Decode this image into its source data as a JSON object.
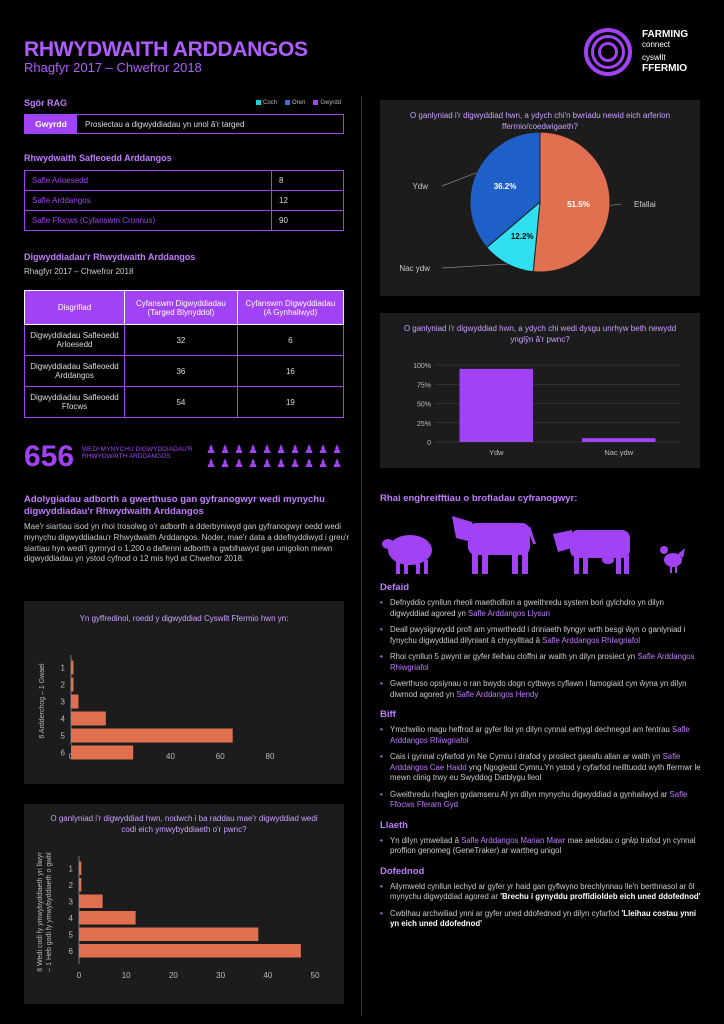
{
  "header": {
    "title": "RHWYDWAITH ARDDANGOS",
    "subtitle": "Rhagfyr 2017 – Chwefror 2018",
    "logo_line1": "FARMING",
    "logo_line2": "connect",
    "logo_line3": "cyswllt",
    "logo_line4": "FFERMIO"
  },
  "rag": {
    "heading": "Sgôr RAG",
    "legend": [
      {
        "label": "Coch",
        "color": "#1fd3d3"
      },
      {
        "label": "Oren",
        "color": "#3a72d8"
      },
      {
        "label": "Gwyrdd",
        "color": "#a142f4"
      }
    ],
    "status": "Gwyrdd",
    "description": "Prosiectau a digwyddiadau yn unol â'r targed"
  },
  "sites": {
    "heading": "Rhwydwaith Safleoedd Arddangos",
    "rows": [
      {
        "label": "Safle Arloesedd",
        "value": "8"
      },
      {
        "label": "Safle Arddangos",
        "value": "12"
      },
      {
        "label": "Safle Ffocws (Cyfanswm Cronnus)",
        "value": "90"
      }
    ]
  },
  "events": {
    "heading": "Digwyddiadau'r Rhwydwaith Arddangos",
    "subheading": "Rhagfyr 2017 – Chwefror 2018",
    "columns": [
      "Disgrifiad",
      "Cyfanswm Digwyddiadau (Targed Blynyddol)",
      "Cyfanswm Digwyddiadau (A Gynhaliwyd)"
    ],
    "rows": [
      [
        "Digwyddiadau Safleoedd Arloesedd",
        "32",
        "6"
      ],
      [
        "Digwyddiadau Safleoedd Arddangos",
        "36",
        "16"
      ],
      [
        "Digwyddiadau Safleoedd Ffocws",
        "54",
        "19"
      ]
    ]
  },
  "attendance": {
    "number": "656",
    "label": "WEDI MYNYCHU DIGWYDDIADAU'R RHWYDWAITH ARDDANGOS",
    "icon": "person-icon"
  },
  "feedback": {
    "heading": "Adolygiadau adborth a gwerthuso gan gyfranogwyr wedi mynychu digwyddiadau'r Rhwydwaith Arddangos",
    "body": "Mae'r siartiau isod yn rhoi trosolwg o'r adborth a dderbyniwyd gan gyfranogwyr oedd wedi mynychu digwyddiadau'r Rhwydwaith Arddangos. Noder, mae'r data a ddefnyddiwyd i greu'r siartiau hyn wedi'i gymryd o 1,200 o daflenni adborth a gwblhawyd gan unigolion mewn digwyddiadau yn ystod cyfnod o 12 mis hyd at Chwefror 2018."
  },
  "chart_data": [
    {
      "type": "bar",
      "orientation": "horizontal",
      "title": "Yn gyffredinol, roedd y digwyddiad Cyswllt Ffermio hwn yn:",
      "ylabel": "6 Ardderchog – 1 Gwael",
      "categories": [
        "1",
        "2",
        "3",
        "4",
        "5",
        "6"
      ],
      "values": [
        1,
        1,
        3,
        14,
        65,
        25
      ],
      "xlim": [
        0,
        80
      ],
      "xticks": [
        0,
        20,
        40,
        60,
        80
      ],
      "color": "#e07050"
    },
    {
      "type": "bar",
      "orientation": "horizontal",
      "title": "O ganlyniad i'r digwyddiad hwn, nodwch i ba raddau mae'r digwyddiad wedi codi eich ymwybyddiaeth o'r pwnc?",
      "ylabel": "6 Wedi codi fy ymwybyddiaeth yn llwyr – 1 Heb godi fy ymwybyddiaeth o gwbl",
      "categories": [
        "1",
        "2",
        "3",
        "4",
        "5",
        "6"
      ],
      "values": [
        0.5,
        0.5,
        5,
        12,
        38,
        47
      ],
      "xlim": [
        0,
        50
      ],
      "xticks": [
        0,
        10,
        20,
        30,
        40,
        50
      ],
      "color": "#e07050"
    },
    {
      "type": "pie",
      "title": "O ganlyniad i'r digwyddiad hwn, a ydych chi'n bwriadu newid eich arferion ffermio/coedwigaeth?",
      "slices": [
        {
          "label": "Efallai",
          "value": 51.5,
          "text": "51.5%",
          "color": "#e07050"
        },
        {
          "label": "Nac ydw",
          "value": 12.2,
          "text": "12.2%",
          "color": "#30e0f0"
        },
        {
          "label": "Ydw",
          "value": 36.2,
          "text": "36.2%",
          "color": "#1f5fc8"
        }
      ]
    },
    {
      "type": "bar",
      "title": "O ganlyniad i'r digwyddiad hwn, a ydych chi wedi dysgu unrhyw beth newydd ynglŷn â'r pwnc?",
      "categories": [
        "Ydw",
        "Nac ydw"
      ],
      "values": [
        95,
        5
      ],
      "ylim": [
        0,
        100
      ],
      "yticks": [
        "0",
        "25%",
        "50%",
        "75%",
        "100%"
      ],
      "color": "#a142f4"
    }
  ],
  "experiences": {
    "heading": "Rhai enghreifftiau o brofiadau cyfranogwyr:",
    "animals": [
      "sheep-icon",
      "cow-icon",
      "dairy-cow-icon",
      "chicken-icon"
    ],
    "groups": [
      {
        "title": "Defaid",
        "items": [
          {
            "text": "Defnyddio cynllun rheoli maethollion a gweithredu system bori gylchdro yn dilyn digwyddiad agored yn ",
            "link": "Safle Arddangos Llysun",
            "end": ""
          },
          {
            "text": "Deall pwysigrwydd profi am ymwrthedd i driniaeth llyngyr wrth besgi ŵyn o ganlyniad i fynychu digwyddiad dilyniant â chysylltiad â ",
            "link": "Safle Arddangos Rhiwgriafol",
            "end": ""
          },
          {
            "text": "Rhoi cynllun 5 pwynt ar gyfer lleihau cloffni ar waith yn dilyn prosiect yn ",
            "link": "Safle Arddangos Rhiwgriafol",
            "end": ""
          },
          {
            "text": "Gwerthuso opsiynau o ran bwydo dogn cytbwys cyflawn i famogiaid cyn ŵyna yn dilyn diwrnod agored yn ",
            "link": "Safle Arddangos Hendy",
            "end": ""
          }
        ]
      },
      {
        "title": "Biff",
        "items": [
          {
            "text": "Ymchwilio magu heffrod ar gyfer lloi yn dilyn cynnal erthygl dechnegol am fentrau ",
            "link": "Safle Arddangos Rhiwgriafol",
            "end": ""
          },
          {
            "text": "Cais i gynnal cyfarfod yn Ne Cymru i drafod y prosiect gaeafu allan ar waith yn ",
            "link": "Safle Arddangos Cae Haidd",
            "end": " yng Ngogledd Cymru.Yn ystod y cyfarfod neilltuodd wyth ffermwr le mewn clinig trwy eu Swyddog Datblygu lleol"
          },
          {
            "text": "Gweithredu rhaglen gydamseru AI yn dilyn mynychu digwyddiad a gynhaliwyd ar ",
            "link": "Safle Ffocws Fferam Gyd",
            "end": ""
          }
        ]
      },
      {
        "title": "Llaeth",
        "items": [
          {
            "text": "Yn dilyn ymweliad â ",
            "link": "Safle Arddangos Marian Mawr",
            "end": " mae aelodau o grŵp trafod yn cynnal proffion genomeg (GeneTraker) ar wartheg unigol"
          }
        ]
      },
      {
        "title": "Dofednod",
        "items": [
          {
            "text": "Ailymweld cynllun iechyd ar gyfer yr haid gan gyflwyno brechlynnau lle'n berthnasol ar ôl mynychu digwyddiad agored ar ",
            "bold": "'Brechu i gynyddu proffidioldeb eich uned ddofednod'",
            "end": ""
          },
          {
            "text": "Cwblhau archwiliad ynni ar gyfer uned ddofednod yn dilyn cyfarfod ",
            "bold": "'Lleihau costau ynni yn eich uned ddofednod'",
            "end": ""
          }
        ]
      }
    ]
  }
}
